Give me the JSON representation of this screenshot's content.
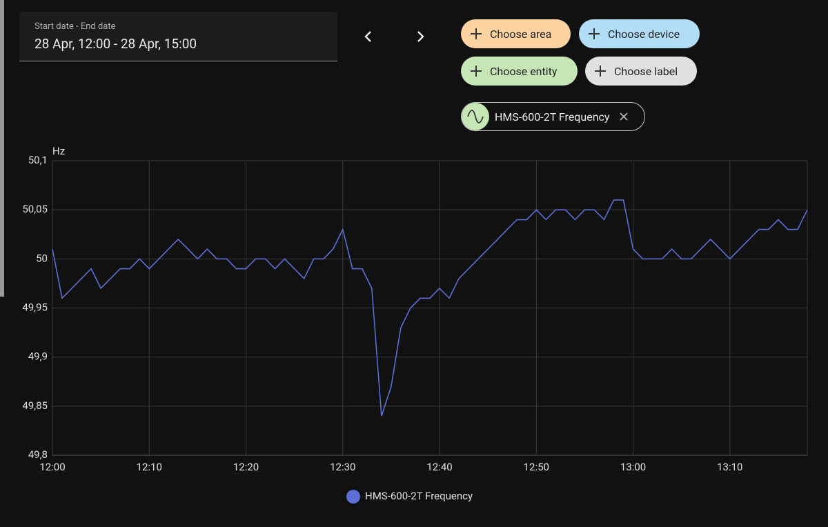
{
  "date_picker": {
    "label": "Start date - End date",
    "value": "28 Apr, 12:00 - 28 Apr, 15:00"
  },
  "filters": [
    "Choose area",
    "Choose device",
    "Choose entity",
    "Choose label"
  ],
  "entities": [
    "HMS-600-2T Frequency"
  ],
  "chart_data": {
    "type": "line",
    "y_label": "Hz",
    "x": [
      "12:00",
      "12:01",
      "12:02",
      "12:03",
      "12:04",
      "12:05",
      "12:06",
      "12:07",
      "12:08",
      "12:09",
      "12:10",
      "12:11",
      "12:12",
      "12:13",
      "12:14",
      "12:15",
      "12:16",
      "12:17",
      "12:18",
      "12:19",
      "12:20",
      "12:21",
      "12:22",
      "12:23",
      "12:24",
      "12:25",
      "12:26",
      "12:27",
      "12:28",
      "12:29",
      "12:30",
      "12:31",
      "12:32",
      "12:33",
      "12:34",
      "12:35",
      "12:36",
      "12:37",
      "12:38",
      "12:39",
      "12:40",
      "12:41",
      "12:42",
      "12:43",
      "12:44",
      "12:45",
      "12:46",
      "12:47",
      "12:48",
      "12:49",
      "12:50",
      "12:51",
      "12:52",
      "12:53",
      "12:54",
      "12:55",
      "12:56",
      "12:57",
      "12:58",
      "12:59",
      "13:00",
      "13:01",
      "13:02",
      "13:03",
      "13:04",
      "13:05",
      "13:06",
      "13:07",
      "13:08",
      "13:09",
      "13:10",
      "13:11",
      "13:12",
      "13:13",
      "13:14",
      "13:15",
      "13:16",
      "13:17",
      "13:18"
    ],
    "series": [
      {
        "name": "HMS-600-2T Frequency",
        "color": "#5b6fd6",
        "values": [
          50.01,
          49.96,
          49.97,
          49.98,
          49.99,
          49.97,
          49.98,
          49.99,
          49.99,
          50.0,
          49.99,
          50.0,
          50.01,
          50.02,
          50.01,
          50.0,
          50.01,
          50.0,
          50.0,
          49.99,
          49.99,
          50.0,
          50.0,
          49.99,
          50.0,
          49.99,
          49.98,
          50.0,
          50.0,
          50.01,
          50.03,
          49.99,
          49.99,
          49.97,
          49.84,
          49.87,
          49.93,
          49.95,
          49.96,
          49.96,
          49.97,
          49.96,
          49.98,
          49.99,
          50.0,
          50.01,
          50.02,
          50.03,
          50.04,
          50.04,
          50.05,
          50.04,
          50.05,
          50.05,
          50.04,
          50.05,
          50.05,
          50.04,
          50.06,
          50.06,
          50.01,
          50.0,
          50.0,
          50.0,
          50.01,
          50.0,
          50.0,
          50.01,
          50.02,
          50.01,
          50.0,
          50.01,
          50.02,
          50.03,
          50.03,
          50.04,
          50.03,
          50.03,
          50.05
        ]
      }
    ],
    "xlim": [
      "12:00",
      "13:18"
    ],
    "xticks": [
      "12:00",
      "12:10",
      "12:20",
      "12:30",
      "12:40",
      "12:50",
      "13:00",
      "13:10"
    ],
    "ylim": [
      49.8,
      50.1
    ],
    "yticks": [
      {
        "value": 49.8,
        "label": "49,8"
      },
      {
        "value": 49.85,
        "label": "49,85"
      },
      {
        "value": 49.9,
        "label": "49,9"
      },
      {
        "value": 49.95,
        "label": "49,95"
      },
      50,
      {
        "value": 50.05,
        "label": "50,05"
      },
      {
        "value": 50.1,
        "label": "50,1"
      }
    ],
    "grid": true,
    "legend": "bottom"
  }
}
